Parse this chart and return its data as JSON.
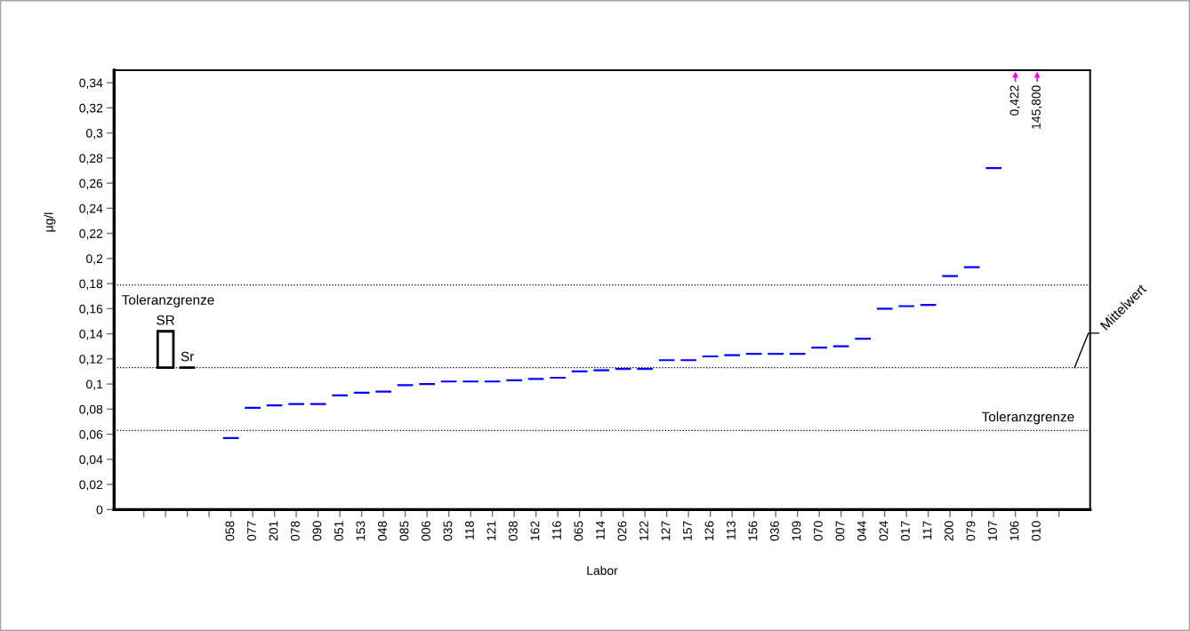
{
  "chart_data": {
    "type": "bar",
    "xlabel": "Labor",
    "ylabel": "µg/l",
    "categories": [
      null,
      null,
      null,
      null,
      "058",
      "077",
      "201",
      "078",
      "090",
      "051",
      "153",
      "048",
      "085",
      "006",
      "035",
      "118",
      "121",
      "038",
      "162",
      "116",
      "065",
      "114",
      "026",
      "122",
      "127",
      "157",
      "126",
      "113",
      "156",
      "036",
      "109",
      "070",
      "007",
      "044",
      "024",
      "017",
      "117",
      "200",
      "079",
      "107",
      "106",
      "010",
      null
    ],
    "series": [
      {
        "name": "SR",
        "color": "#000000",
        "values": [
          null,
          0.029,
          null,
          null,
          null,
          null,
          null,
          null,
          null,
          null,
          null,
          null,
          null,
          null,
          null,
          null,
          null,
          null,
          null,
          null,
          null,
          null,
          null,
          null,
          null,
          null,
          null,
          null,
          null,
          null,
          null,
          null,
          null,
          null,
          null,
          null,
          null,
          null,
          null,
          null,
          null,
          null,
          null
        ],
        "base": [
          null,
          0.113,
          null,
          null,
          null,
          null,
          null,
          null,
          null,
          null,
          null,
          null,
          null,
          null,
          null,
          null,
          null,
          null,
          null,
          null,
          null,
          null,
          null,
          null,
          null,
          null,
          null,
          null,
          null,
          null,
          null,
          null,
          null,
          null,
          null,
          null,
          null,
          null,
          null,
          null,
          null,
          null,
          null
        ]
      },
      {
        "name": "Sr",
        "color": "#000000",
        "values": [
          null,
          null,
          0,
          null,
          null,
          null,
          null,
          null,
          null,
          null,
          null,
          null,
          null,
          null,
          null,
          null,
          null,
          null,
          null,
          null,
          null,
          null,
          null,
          null,
          null,
          null,
          null,
          null,
          null,
          null,
          null,
          null,
          null,
          null,
          null,
          null,
          null,
          null,
          null,
          null,
          null,
          null,
          null
        ],
        "base": [
          null,
          null,
          0.113,
          null,
          null,
          null,
          null,
          null,
          null,
          null,
          null,
          null,
          null,
          null,
          null,
          null,
          null,
          null,
          null,
          null,
          null,
          null,
          null,
          null,
          null,
          null,
          null,
          null,
          null,
          null,
          null,
          null,
          null,
          null,
          null,
          null,
          null,
          null,
          null,
          null,
          null,
          null,
          null
        ]
      },
      {
        "color": "#0000ff",
        "values": [
          null,
          null,
          null,
          null,
          0,
          0,
          0,
          0,
          0,
          0,
          0,
          0,
          0,
          0,
          0,
          0,
          0,
          0,
          0,
          0,
          0,
          0,
          0,
          0,
          0,
          0,
          0,
          0,
          0,
          0,
          0,
          0,
          0,
          0,
          0,
          0,
          0,
          0,
          0,
          0,
          null,
          null,
          null
        ],
        "base": [
          null,
          null,
          null,
          null,
          0.057,
          0.081,
          0.083,
          0.084,
          0.084,
          0.091,
          0.093,
          0.094,
          0.099,
          0.1,
          0.102,
          0.102,
          0.102,
          0.103,
          0.104,
          0.105,
          0.11,
          0.111,
          0.112,
          0.112,
          0.119,
          0.119,
          0.122,
          0.123,
          0.124,
          0.124,
          0.124,
          0.129,
          0.13,
          0.136,
          0.16,
          0.162,
          0.163,
          0.186,
          0.193,
          0.272,
          null,
          null,
          null
        ]
      }
    ],
    "ylim": [
      0,
      0.35
    ],
    "yticks": [
      0,
      {
        "value": 0.02,
        "label": "0,02"
      },
      {
        "value": 0.04,
        "label": "0,04"
      },
      {
        "value": 0.06,
        "label": "0,06"
      },
      {
        "value": 0.08,
        "label": "0,08"
      },
      {
        "value": 0.1,
        "label": "0,1"
      },
      {
        "value": 0.12,
        "label": "0,12"
      },
      {
        "value": 0.14,
        "label": "0,14"
      },
      {
        "value": 0.16,
        "label": "0,16"
      },
      {
        "value": 0.18,
        "label": "0,18"
      },
      {
        "value": 0.2,
        "label": "0,2"
      },
      {
        "value": 0.22,
        "label": "0,22"
      },
      {
        "value": 0.24,
        "label": "0,24"
      },
      {
        "value": 0.26,
        "label": "0,26"
      },
      {
        "value": 0.28,
        "label": "0,28"
      },
      {
        "value": 0.3,
        "label": "0,3"
      },
      {
        "value": 0.32,
        "label": "0,32"
      },
      {
        "value": 0.34,
        "label": "0,34"
      }
    ],
    "ref_lines": [
      {
        "axis": "y",
        "value": 0.179,
        "label": "Toleranzgrenze",
        "color": "#000000",
        "line_style": "dotted"
      },
      {
        "axis": "y",
        "value": 0.113,
        "label": "Mittelwert",
        "color": "#000000",
        "line_style": "dotted"
      },
      {
        "axis": "y",
        "value": 0.063,
        "label": "Toleranzgrenze",
        "color": "#000000",
        "line_style": "dotted"
      }
    ],
    "annotations": [
      "0,422",
      "145,800"
    ]
  }
}
